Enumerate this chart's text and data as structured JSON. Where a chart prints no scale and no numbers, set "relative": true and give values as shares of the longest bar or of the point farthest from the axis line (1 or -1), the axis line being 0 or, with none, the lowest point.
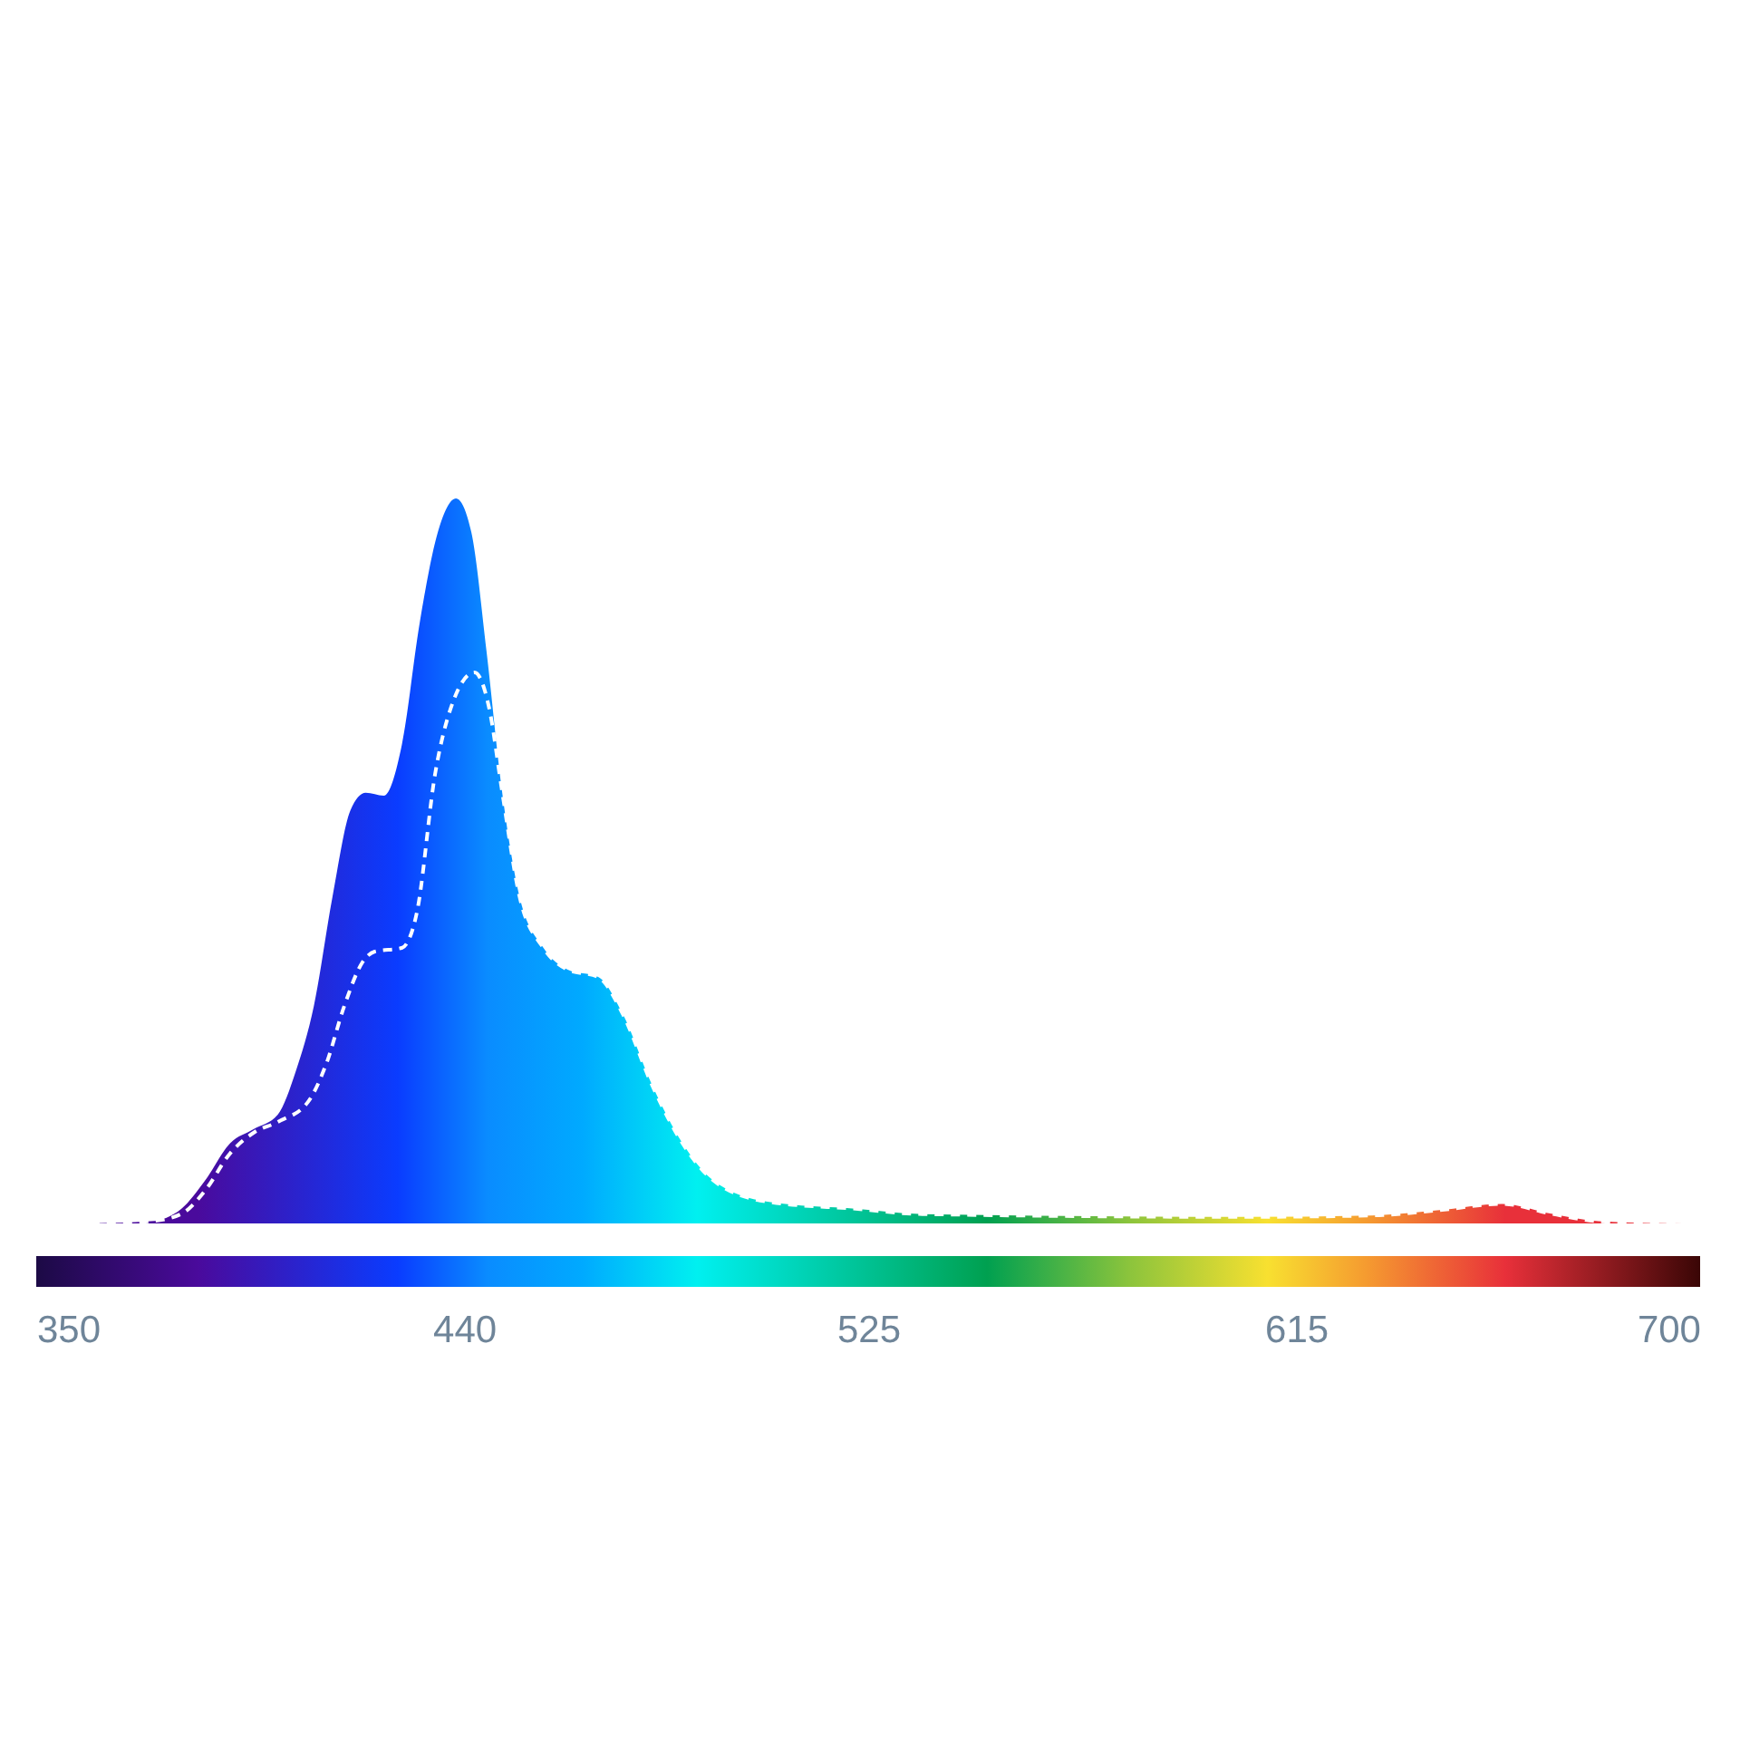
{
  "chart_data": {
    "type": "area",
    "relative": true,
    "xlim": [
      350,
      700
    ],
    "xticks": [
      350,
      440,
      525,
      615,
      700
    ],
    "grid": false,
    "series": [
      {
        "color": "#0050ff",
        "x": [
          361.4,
          374.1,
          380.5,
          385.6,
          390.7,
          395.7,
          400.8,
          404.6,
          408.4,
          412.3,
          416.1,
          419.3,
          423.1,
          426.9,
          430.7,
          434.5,
          438.3,
          441.5,
          444.7,
          447.9,
          451.7,
          456.7,
          461.8,
          468.2,
          473.3,
          479.6,
          486.0,
          492.3,
          503.8,
          522.8,
          535.7,
          603.8,
          631.0,
          644.7,
          658.3,
          669.0,
          678.6,
          696.4
        ],
        "values": [
          0,
          0.003,
          0.02,
          0.06,
          0.11,
          0.13,
          0.15,
          0.21,
          0.3,
          0.45,
          0.57,
          0.594,
          0.59,
          0.66,
          0.83,
          0.954,
          1.0,
          0.954,
          0.79,
          0.6,
          0.45,
          0.38,
          0.35,
          0.34,
          0.29,
          0.19,
          0.11,
          0.06,
          0.03,
          0.02,
          0.013,
          0.009,
          0.011,
          0.018,
          0.027,
          0.013,
          0.003,
          0
        ]
      },
      {
        "type": "line",
        "color": "#ffffff",
        "line_style": "dashed",
        "x": [
          361.4,
          374.1,
          380.5,
          385.6,
          390.7,
          395.7,
          400.8,
          407.1,
          411.0,
          414.8,
          418.6,
          421.2,
          426.9,
          430.1,
          433.9,
          437.7,
          442.2,
          445.3,
          447.9,
          451.7,
          456.7,
          461.8,
          468.2,
          473.3,
          479.6,
          486.0,
          492.3,
          503.8,
          522.8,
          535.7,
          603.8,
          631.0,
          644.7,
          658.3,
          669.0,
          678.6,
          696.4
        ],
        "values": [
          0,
          0.003,
          0.013,
          0.046,
          0.096,
          0.125,
          0.14,
          0.167,
          0.22,
          0.3,
          0.36,
          0.375,
          0.38,
          0.43,
          0.62,
          0.72,
          0.76,
          0.71,
          0.6,
          0.45,
          0.38,
          0.35,
          0.34,
          0.29,
          0.19,
          0.11,
          0.06,
          0.03,
          0.02,
          0.013,
          0.009,
          0.011,
          0.018,
          0.027,
          0.013,
          0.003,
          0
        ]
      }
    ]
  }
}
